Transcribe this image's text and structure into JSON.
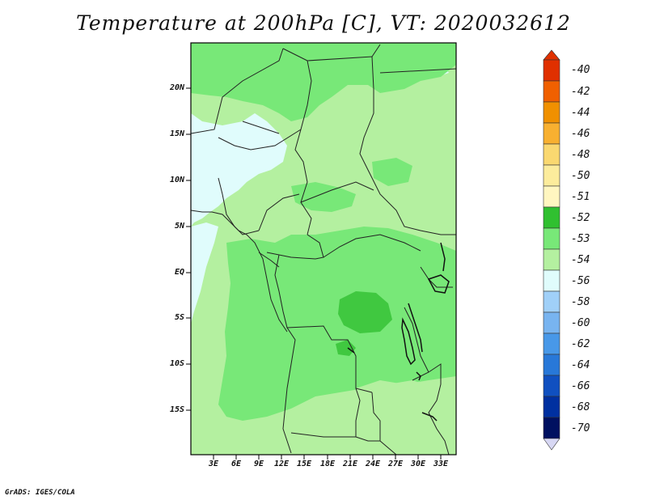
{
  "title": "Temperature at 200hPa [C], VT: 2020032612",
  "credit": "GrADS: IGES/COLA",
  "axes": {
    "lat_labels": [
      "20N",
      "15N",
      "10N",
      "5N",
      "EQ",
      "5S",
      "10S",
      "15S"
    ],
    "lon_labels": [
      "3E",
      "6E",
      "9E",
      "12E",
      "15E",
      "18E",
      "21E",
      "24E",
      "27E",
      "30E",
      "33E"
    ]
  },
  "colorbar": {
    "labels": [
      "-40",
      "-42",
      "-44",
      "-46",
      "-48",
      "-50",
      "-51",
      "-52",
      "-53",
      "-54",
      "-56",
      "-58",
      "-60",
      "-62",
      "-64",
      "-66",
      "-68",
      "-70"
    ],
    "colors": [
      "#a00000",
      "#e03000",
      "#f06000",
      "#f09000",
      "#f8b030",
      "#fad870",
      "#fff4b0",
      "#30c030",
      "#60dd60",
      "#b4f0a0",
      "#e0fcfc",
      "#a0d0f8",
      "#70b0f0",
      "#4090e8",
      "#2070d8",
      "#1050c0",
      "#0030a0",
      "#001060",
      "#d0d0f0"
    ]
  },
  "map_colors": {
    "lightest": "#e0fcfc",
    "light": "#b4f0a0",
    "mid": "#78e878",
    "dark": "#40c840"
  }
}
